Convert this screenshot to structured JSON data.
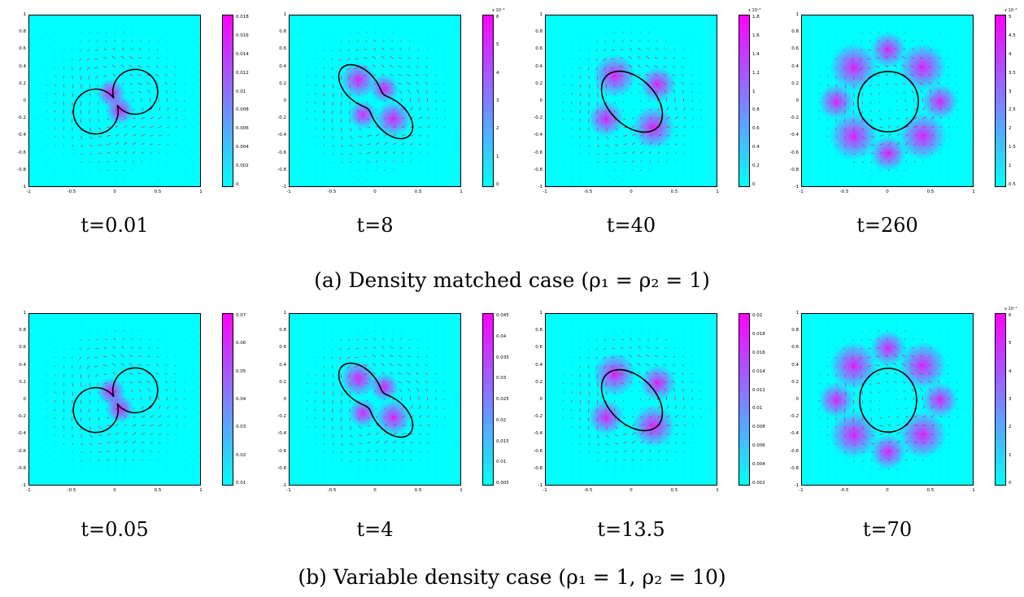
{
  "rows": [
    {
      "caption": "(a)  Density matched case (ρ₁ = ρ₂ = 1)",
      "panels": [
        {
          "time": "t=0.01",
          "shape": "two-circles",
          "cbar_exp": "",
          "cbar_ticks": [
            "0.018",
            "0.016",
            "0.014",
            "0.012",
            "0.01",
            "0.008",
            "0.006",
            "0.004",
            "0.002",
            "0"
          ]
        },
        {
          "time": "t=8",
          "shape": "peanut",
          "cbar_exp": "x 10⁻⁴",
          "cbar_ticks": [
            "6",
            "5",
            "4",
            "3",
            "2",
            "1",
            "0"
          ]
        },
        {
          "time": "t=40",
          "shape": "ellipse",
          "cbar_exp": "x 10⁻⁴",
          "cbar_ticks": [
            "1.8",
            "1.6",
            "1.4",
            "1.2",
            "1",
            "0.8",
            "0.6",
            "0.4",
            "0.2",
            "0"
          ]
        },
        {
          "time": "t=260",
          "shape": "circle",
          "cbar_exp": "x 10⁻⁵",
          "cbar_ticks": [
            "5",
            "4.5",
            "4",
            "3.5",
            "3",
            "2.5",
            "2",
            "1.5",
            "1",
            "0.5"
          ]
        }
      ]
    },
    {
      "caption": "(b)  Variable density case (ρ₁ = 1, ρ₂ = 10)",
      "panels": [
        {
          "time": "t=0.05",
          "shape": "two-circles",
          "cbar_exp": "",
          "cbar_ticks": [
            "0.07",
            "0.06",
            "0.05",
            "0.04",
            "0.03",
            "0.02",
            "0.01"
          ]
        },
        {
          "time": "t=4",
          "shape": "peanut",
          "cbar_exp": "",
          "cbar_ticks": [
            "0.045",
            "0.04",
            "0.035",
            "0.03",
            "0.025",
            "0.02",
            "0.015",
            "0.01",
            "0.005"
          ]
        },
        {
          "time": "t=13.5",
          "shape": "ellipse",
          "cbar_exp": "",
          "cbar_ticks": [
            "0.02",
            "0.018",
            "0.016",
            "0.014",
            "0.012",
            "0.01",
            "0.008",
            "0.006",
            "0.004",
            "0.002"
          ]
        },
        {
          "time": "t=70",
          "shape": "circle-vert",
          "cbar_exp": "x 10⁻⁴",
          "cbar_ticks": [
            "6",
            "5",
            "4",
            "3",
            "2",
            "1",
            "0"
          ]
        }
      ]
    }
  ],
  "axis": {
    "y_ticks": [
      "1",
      "0.8",
      "0.6",
      "0.4",
      "0.2",
      "0",
      "-0.2",
      "-0.4",
      "-0.6",
      "-0.8",
      "-1"
    ],
    "x_ticks": [
      "-1",
      "-0.5",
      "0",
      "0.5",
      "1"
    ]
  }
}
